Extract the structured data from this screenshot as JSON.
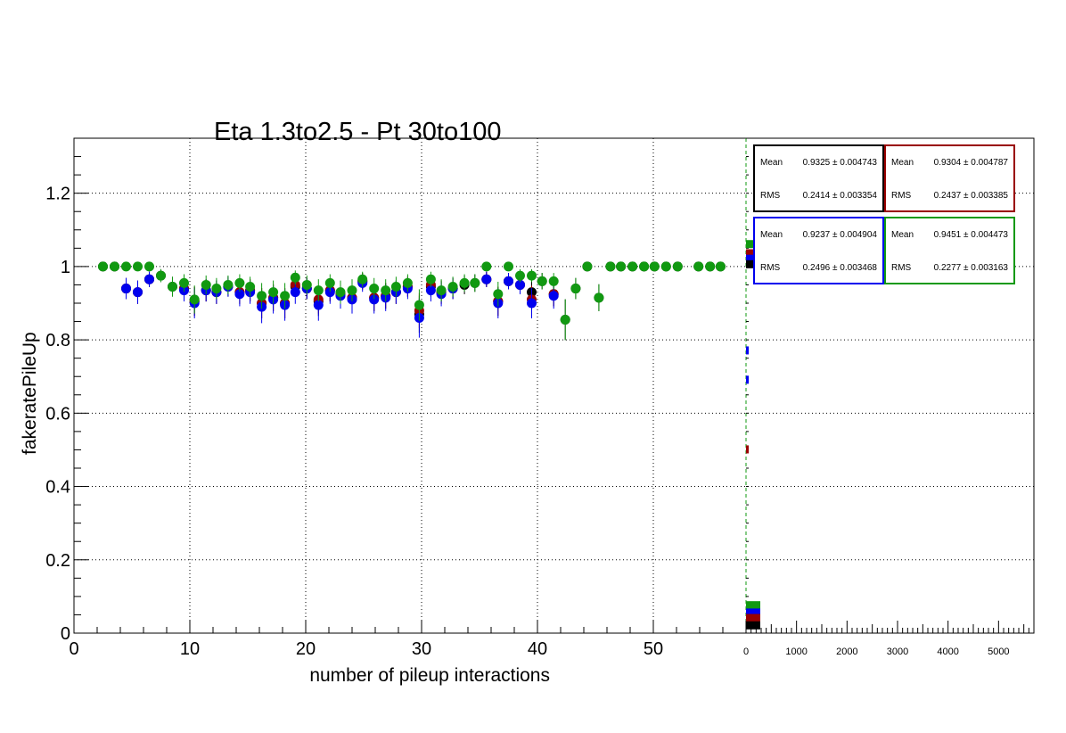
{
  "chart_data": {
    "type": "scatter",
    "title": "Eta 1.3to2.5 - Pt 30to100",
    "xlabel": "number of pileup interactions",
    "ylabel": "fakeratePileUp",
    "xlim": [
      0,
      58
    ],
    "ylim": [
      0,
      1.35
    ],
    "x_ticks": [
      "0",
      "10",
      "20",
      "30",
      "40",
      "50"
    ],
    "y_ticks": [
      "0",
      "0.2",
      "0.4",
      "0.6",
      "0.8",
      "1",
      "1.2"
    ],
    "grid": true,
    "series": [
      {
        "color": "#000000",
        "points": [
          [
            2.5,
            1.0
          ],
          [
            3.5,
            1.0
          ],
          [
            4.5,
            0.94
          ],
          [
            5.5,
            0.93
          ],
          [
            6.5,
            0.965
          ],
          [
            7.5,
            0.975
          ],
          [
            8.5,
            0.945
          ],
          [
            9.5,
            0.94
          ],
          [
            10.4,
            0.905
          ],
          [
            11.4,
            0.935
          ],
          [
            12.3,
            0.93
          ],
          [
            13.3,
            0.945
          ],
          [
            14.3,
            0.93
          ],
          [
            15.2,
            0.935
          ],
          [
            16.2,
            0.9
          ],
          [
            17.2,
            0.915
          ],
          [
            18.2,
            0.9
          ],
          [
            19.1,
            0.945
          ],
          [
            20.1,
            0.94
          ],
          [
            21.1,
            0.905
          ],
          [
            22.1,
            0.935
          ],
          [
            23.0,
            0.925
          ],
          [
            24.0,
            0.915
          ],
          [
            24.9,
            0.96
          ],
          [
            25.9,
            0.915
          ],
          [
            26.9,
            0.92
          ],
          [
            27.8,
            0.93
          ],
          [
            28.8,
            0.945
          ],
          [
            29.8,
            0.87
          ],
          [
            30.8,
            0.945
          ],
          [
            31.7,
            0.93
          ],
          [
            32.7,
            0.94
          ],
          [
            33.7,
            0.95
          ],
          [
            34.6,
            0.955
          ],
          [
            35.6,
            0.965
          ],
          [
            36.6,
            0.905
          ],
          [
            37.5,
            0.96
          ],
          [
            38.5,
            0.95
          ],
          [
            39.5,
            0.93
          ],
          [
            40.4,
            0.96
          ],
          [
            41.4,
            0.925
          ],
          [
            42.4,
            0.855
          ],
          [
            43.3,
            0.94
          ],
          [
            44.3,
            1.0
          ],
          [
            45.3,
            0.915
          ],
          [
            46.3,
            1.0
          ],
          [
            47.2,
            1.0
          ],
          [
            48.2,
            1.0
          ],
          [
            49.2,
            1.0
          ],
          [
            50.1,
            1.0
          ],
          [
            51.1,
            1.0
          ],
          [
            52.1,
            1.0
          ],
          [
            53.9,
            1.0
          ],
          [
            54.9,
            1.0
          ],
          [
            55.8,
            1.0
          ]
        ]
      },
      {
        "color": "#990000",
        "points": [
          [
            4.5,
            0.94
          ],
          [
            5.5,
            0.93
          ],
          [
            6.5,
            0.965
          ],
          [
            9.5,
            0.94
          ],
          [
            10.4,
            0.905
          ],
          [
            11.4,
            0.935
          ],
          [
            12.3,
            0.93
          ],
          [
            14.3,
            0.93
          ],
          [
            15.2,
            0.935
          ],
          [
            16.2,
            0.9
          ],
          [
            17.2,
            0.915
          ],
          [
            18.2,
            0.9
          ],
          [
            19.1,
            0.95
          ],
          [
            20.1,
            0.94
          ],
          [
            21.1,
            0.91
          ],
          [
            22.1,
            0.935
          ],
          [
            23.0,
            0.925
          ],
          [
            24.0,
            0.915
          ],
          [
            24.9,
            0.96
          ],
          [
            25.9,
            0.915
          ],
          [
            26.9,
            0.92
          ],
          [
            27.8,
            0.93
          ],
          [
            28.8,
            0.945
          ],
          [
            29.8,
            0.88
          ],
          [
            30.8,
            0.95
          ],
          [
            31.7,
            0.93
          ],
          [
            32.7,
            0.94
          ],
          [
            35.6,
            0.965
          ],
          [
            36.6,
            0.905
          ],
          [
            37.5,
            0.96
          ],
          [
            38.5,
            0.95
          ],
          [
            39.5,
            0.91
          ],
          [
            41.4,
            0.925
          ]
        ]
      },
      {
        "color": "#0000ee",
        "points": [
          [
            4.5,
            0.94
          ],
          [
            5.5,
            0.93
          ],
          [
            6.5,
            0.965
          ],
          [
            9.5,
            0.935
          ],
          [
            10.4,
            0.9
          ],
          [
            11.4,
            0.935
          ],
          [
            12.3,
            0.93
          ],
          [
            13.3,
            0.945
          ],
          [
            14.3,
            0.925
          ],
          [
            15.2,
            0.93
          ],
          [
            16.2,
            0.89
          ],
          [
            17.2,
            0.91
          ],
          [
            18.2,
            0.895
          ],
          [
            19.1,
            0.93
          ],
          [
            20.1,
            0.94
          ],
          [
            21.1,
            0.895
          ],
          [
            22.1,
            0.93
          ],
          [
            23.0,
            0.92
          ],
          [
            24.0,
            0.91
          ],
          [
            24.9,
            0.955
          ],
          [
            25.9,
            0.91
          ],
          [
            26.9,
            0.915
          ],
          [
            27.8,
            0.93
          ],
          [
            28.8,
            0.94
          ],
          [
            29.8,
            0.86
          ],
          [
            30.8,
            0.935
          ],
          [
            31.7,
            0.925
          ],
          [
            32.7,
            0.94
          ],
          [
            35.6,
            0.965
          ],
          [
            36.6,
            0.9
          ],
          [
            37.5,
            0.96
          ],
          [
            38.5,
            0.95
          ],
          [
            39.5,
            0.9
          ],
          [
            41.4,
            0.92
          ]
        ]
      },
      {
        "color": "#119911",
        "points": [
          [
            2.5,
            1.0
          ],
          [
            3.5,
            1.0
          ],
          [
            4.5,
            1.0
          ],
          [
            5.5,
            1.0
          ],
          [
            6.5,
            1.0
          ],
          [
            7.5,
            0.975
          ],
          [
            8.5,
            0.945
          ],
          [
            9.5,
            0.955
          ],
          [
            10.4,
            0.91
          ],
          [
            11.4,
            0.95
          ],
          [
            12.3,
            0.94
          ],
          [
            13.3,
            0.95
          ],
          [
            14.3,
            0.955
          ],
          [
            15.2,
            0.945
          ],
          [
            16.2,
            0.92
          ],
          [
            17.2,
            0.93
          ],
          [
            18.2,
            0.92
          ],
          [
            19.1,
            0.97
          ],
          [
            20.1,
            0.95
          ],
          [
            21.1,
            0.935
          ],
          [
            22.1,
            0.955
          ],
          [
            23.0,
            0.93
          ],
          [
            24.0,
            0.935
          ],
          [
            24.9,
            0.965
          ],
          [
            25.9,
            0.94
          ],
          [
            26.9,
            0.935
          ],
          [
            27.8,
            0.945
          ],
          [
            28.8,
            0.955
          ],
          [
            29.8,
            0.895
          ],
          [
            30.8,
            0.965
          ],
          [
            31.7,
            0.935
          ],
          [
            32.7,
            0.945
          ],
          [
            33.7,
            0.955
          ],
          [
            34.6,
            0.955
          ],
          [
            35.6,
            1.0
          ],
          [
            36.6,
            0.925
          ],
          [
            37.5,
            1.0
          ],
          [
            38.5,
            0.975
          ],
          [
            39.5,
            0.975
          ],
          [
            40.4,
            0.96
          ],
          [
            41.4,
            0.96
          ],
          [
            42.4,
            0.855
          ],
          [
            43.3,
            0.94
          ],
          [
            44.3,
            1.0
          ],
          [
            45.3,
            0.915
          ],
          [
            46.3,
            1.0
          ],
          [
            47.2,
            1.0
          ],
          [
            48.2,
            1.0
          ],
          [
            49.2,
            1.0
          ],
          [
            50.1,
            1.0
          ],
          [
            51.1,
            1.0
          ],
          [
            52.1,
            1.0
          ],
          [
            53.9,
            1.0
          ],
          [
            54.9,
            1.0
          ],
          [
            55.8,
            1.0
          ]
        ]
      }
    ],
    "side_axis_ticks": [
      "0",
      "1000",
      "2000",
      "3000",
      "4000",
      "5000"
    ],
    "stat_boxes": [
      {
        "color": "#000000",
        "mean_label": "Mean",
        "mean": "0.9325 ± 0.004743",
        "rms_label": "RMS",
        "rms": "0.2414 ± 0.003354"
      },
      {
        "color": "#990000",
        "mean_label": "Mean",
        "mean": "0.9304 ± 0.004787",
        "rms_label": "RMS",
        "rms": "0.2437 ± 0.003385"
      },
      {
        "color": "#0000ee",
        "mean_label": "Mean",
        "mean": "0.9237 ± 0.004904",
        "rms_label": "RMS",
        "rms": "0.2496 ± 0.003468"
      },
      {
        "color": "#119911",
        "mean_label": "Mean",
        "mean": "0.9451 ± 0.004473",
        "rms_label": "RMS",
        "rms": "0.2277 ± 0.003163"
      }
    ]
  }
}
